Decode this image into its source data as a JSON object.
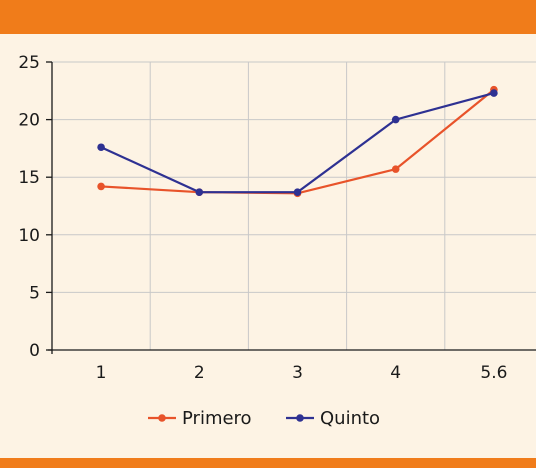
{
  "chart_data": {
    "type": "line",
    "categories": [
      "1",
      "2",
      "3",
      "4",
      "5.6"
    ],
    "series": [
      {
        "name": "Primero",
        "color": "#e8532a",
        "values": [
          14.2,
          13.7,
          13.6,
          15.7,
          22.6
        ]
      },
      {
        "name": "Quinto",
        "color": "#2e3192",
        "values": [
          17.6,
          13.7,
          13.7,
          20.0,
          22.3
        ]
      }
    ],
    "ylim": [
      0,
      25
    ],
    "yticks": [
      0,
      5,
      10,
      15,
      20,
      25
    ],
    "grid": true,
    "legend_position": "bottom-center",
    "axis_color": "#1a1a1a",
    "grid_color": "#c8c8c8",
    "accent_color": "#f07c1a"
  }
}
